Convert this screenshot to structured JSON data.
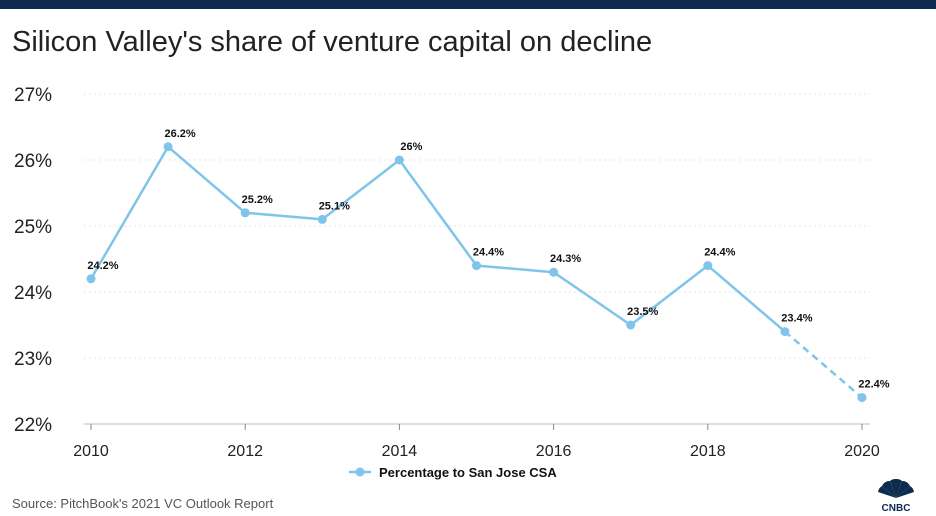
{
  "title": "Silicon Valley's share of venture capital on decline",
  "source": "Source: PitchBook's 2021 VC Outlook Report",
  "logo_text": "CNBC",
  "colors": {
    "top_bar": "#0d2b4e",
    "series": "#7fc4ea",
    "grid": "#e6e6e6",
    "text": "#222222"
  },
  "chart_data": {
    "type": "line",
    "x": [
      2010,
      2011,
      2012,
      2013,
      2014,
      2015,
      2016,
      2017,
      2018,
      2019,
      2020
    ],
    "series": [
      {
        "name": "Percentage to San Jose CSA",
        "values": [
          24.2,
          26.2,
          25.2,
          25.1,
          26,
          24.4,
          24.3,
          23.5,
          24.4,
          23.4,
          22.4
        ],
        "data_labels": [
          "24.2%",
          "26.2%",
          "25.2%",
          "25.1%",
          "26%",
          "24.4%",
          "24.3%",
          "23.5%",
          "24.4%",
          "23.4%",
          "22.4%"
        ],
        "dashed_from_year": 2019
      }
    ],
    "x_ticks": [
      2010,
      2012,
      2014,
      2016,
      2018,
      2020
    ],
    "y_ticks": [
      "22%",
      "23%",
      "24%",
      "25%",
      "26%",
      "27%"
    ],
    "ylim": [
      22,
      27
    ],
    "xlim": [
      2010,
      2020
    ],
    "xlabel": "",
    "ylabel": "",
    "grid": "horizontal",
    "legend": "bottom-center"
  }
}
